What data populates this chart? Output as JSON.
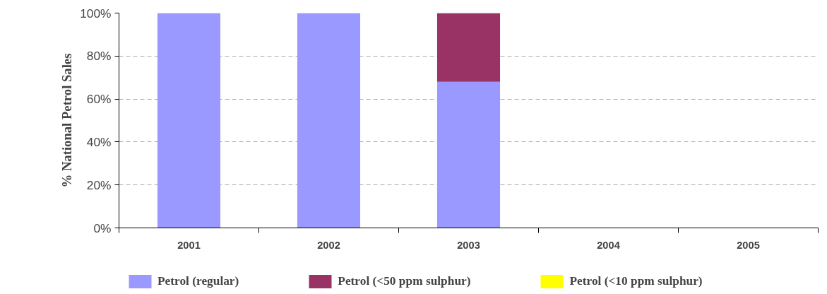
{
  "chart_data": {
    "type": "bar",
    "stacked": true,
    "ylabel": "% National Petrol Sales",
    "categories": [
      "2001",
      "2002",
      "2003",
      "2004",
      "2005"
    ],
    "series": [
      {
        "name": "Petrol (regular)",
        "color": "#9999ff",
        "values": [
          100,
          100,
          68,
          null,
          null
        ]
      },
      {
        "name": "Petrol (<50 ppm sulphur)",
        "color": "#993366",
        "values": [
          null,
          null,
          32,
          null,
          null
        ]
      },
      {
        "name": "Petrol (<10 ppm sulphur)",
        "color": "#ffff00",
        "values": [
          null,
          null,
          null,
          null,
          null
        ]
      }
    ],
    "ylim": [
      0,
      100
    ],
    "yticks": [
      {
        "value": 0,
        "label": "0%"
      },
      {
        "value": 20,
        "label": "20%"
      },
      {
        "value": 40,
        "label": "40%"
      },
      {
        "value": 60,
        "label": "60%"
      },
      {
        "value": 80,
        "label": "80%"
      },
      {
        "value": 100,
        "label": "100%"
      }
    ],
    "grid": "y",
    "legend": "bottom"
  }
}
